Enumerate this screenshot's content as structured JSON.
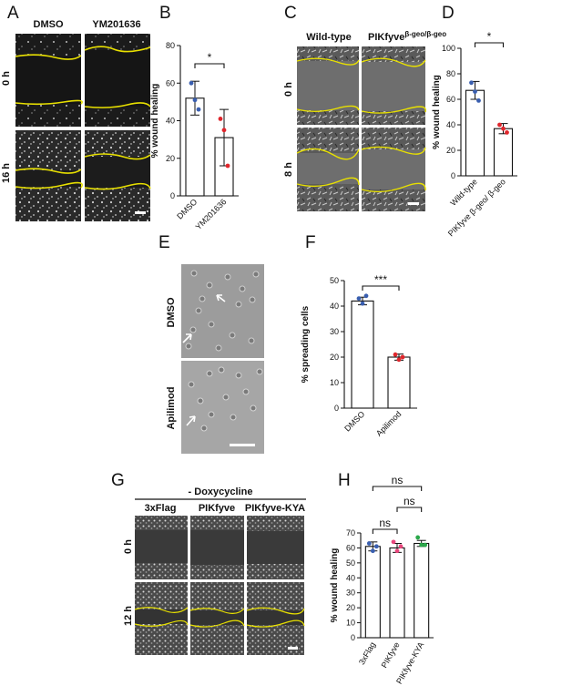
{
  "panels": {
    "A": {
      "letter": "A",
      "columns": [
        "DMSO",
        "YM201636"
      ],
      "rows": [
        "0 h",
        "16 h"
      ]
    },
    "C": {
      "letter": "C",
      "columns": [
        "Wild-type",
        "PIKfyve"
      ],
      "col2_superscript": "β-geo/β-geo",
      "rows": [
        "0 h",
        "8 h"
      ]
    },
    "E": {
      "letter": "E",
      "rows": [
        "DMSO",
        "Apilimod"
      ]
    },
    "G": {
      "letter": "G",
      "header": "- Doxycycline",
      "columns": [
        "3xFlag",
        "PIKfyve",
        "PIKfyve-KYA"
      ],
      "rows": [
        "0 h",
        "12 h"
      ]
    }
  },
  "colors": {
    "bar_outline": "#111111",
    "wound_edge": "#e8e000",
    "dot_blue": "#3a5fb0",
    "dot_red": "#e0262c",
    "dot_green": "#2aa84a",
    "dot_pink": "#e8467c"
  },
  "chart_data": [
    {
      "panel": "B",
      "type": "bar",
      "ylabel": "% wound healing",
      "categories": [
        "DMSO",
        "YM201636"
      ],
      "values": [
        52,
        31
      ],
      "errors": [
        9,
        15
      ],
      "points": [
        [
          60,
          51,
          46
        ],
        [
          41,
          35,
          16
        ]
      ],
      "point_colors": [
        "#3a5fb0",
        "#e0262c",
        "#e0262c"
      ],
      "ylim": [
        0,
        80
      ],
      "yticks": [
        0,
        20,
        40,
        60,
        80
      ],
      "significance": [
        {
          "from": 0,
          "to": 1,
          "label": "*"
        }
      ]
    },
    {
      "panel": "D",
      "type": "bar",
      "ylabel": "% wound healing",
      "categories": [
        "Wild-type",
        "PIKfyve β-geo/ β-geo"
      ],
      "values": [
        67,
        37
      ],
      "errors": [
        7,
        4
      ],
      "points": [
        [
          73,
          66,
          59
        ],
        [
          40,
          37,
          34
        ]
      ],
      "point_colors": [
        "#3a5fb0",
        "#e0262c",
        "#e0262c"
      ],
      "ylim": [
        0,
        100
      ],
      "yticks": [
        0,
        20,
        40,
        60,
        80,
        100
      ],
      "significance": [
        {
          "from": 0,
          "to": 1,
          "label": "*"
        }
      ]
    },
    {
      "panel": "F",
      "type": "bar",
      "ylabel": "% spreading cells",
      "categories": [
        "DMSO",
        "Apilimod"
      ],
      "values": [
        42,
        20
      ],
      "errors": [
        1.5,
        1.2
      ],
      "points": [
        [
          43,
          41,
          44
        ],
        [
          21,
          19,
          20
        ]
      ],
      "point_colors": [
        "#3a5fb0",
        "#e0262c",
        "#e0262c"
      ],
      "ylim": [
        0,
        50
      ],
      "yticks": [
        0,
        10,
        20,
        30,
        40,
        50
      ],
      "significance": [
        {
          "from": 0,
          "to": 1,
          "label": "***"
        }
      ]
    },
    {
      "panel": "H",
      "type": "bar",
      "ylabel": "% wound healing",
      "categories": [
        "3xFlag",
        "PIKfyve",
        "PIKfyve-KYA"
      ],
      "values": [
        61,
        60,
        63
      ],
      "errors": [
        3,
        3,
        2
      ],
      "points": [
        [
          63,
          58,
          61
        ],
        [
          64,
          58,
          61
        ],
        [
          67,
          62,
          62
        ]
      ],
      "point_colors": [
        "#3a5fb0",
        "#e8467c",
        "#2aa84a"
      ],
      "ylim": [
        0,
        70
      ],
      "yticks": [
        0,
        10,
        20,
        30,
        40,
        50,
        60,
        70
      ],
      "significance": [
        {
          "from": 0,
          "to": 1,
          "label": "ns"
        },
        {
          "from": 1,
          "to": 2,
          "label": "ns"
        },
        {
          "from": 0,
          "to": 2,
          "label": "ns"
        }
      ]
    }
  ]
}
